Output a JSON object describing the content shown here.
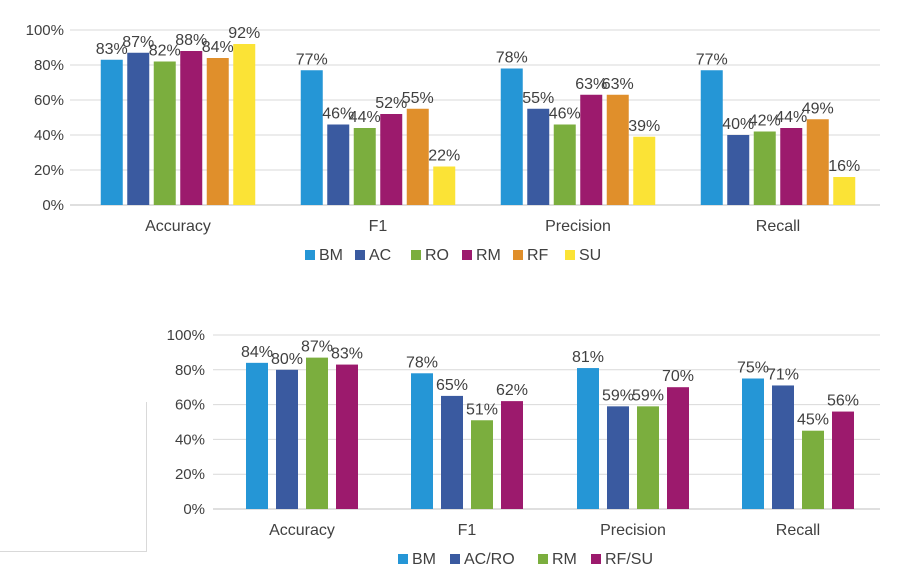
{
  "chart_data": [
    {
      "type": "bar",
      "categories": [
        "Accuracy",
        "F1",
        "Precision",
        "Recall"
      ],
      "ylim": [
        0,
        100
      ],
      "yticks": [
        "0%",
        "20%",
        "40%",
        "60%",
        "80%",
        "100%"
      ],
      "series": [
        {
          "name": "BM",
          "color": "#2596d6",
          "values": [
            83,
            77,
            78,
            77
          ],
          "labels": [
            "83%",
            "77%",
            "78%",
            "77%"
          ]
        },
        {
          "name": "AC",
          "color": "#3a5aa0",
          "values": [
            87,
            46,
            55,
            40
          ],
          "labels": [
            "87%",
            "46%",
            "55%",
            "40%"
          ]
        },
        {
          "name": "RO",
          "color": "#7bae3e",
          "values": [
            82,
            44,
            46,
            42
          ],
          "labels": [
            "82%",
            "44%",
            "46%",
            "42%"
          ]
        },
        {
          "name": "RM",
          "color": "#9c1a6d",
          "values": [
            88,
            52,
            63,
            44
          ],
          "labels": [
            "88%",
            "52%",
            "63%",
            "44%"
          ]
        },
        {
          "name": "RF",
          "color": "#e08f2b",
          "values": [
            84,
            55,
            63,
            49
          ],
          "labels": [
            "84%",
            "55%",
            "63%",
            "49%"
          ]
        },
        {
          "name": "SU",
          "color": "#fbe336",
          "values": [
            92,
            22,
            39,
            16
          ],
          "labels": [
            "92%",
            "22%",
            "39%",
            "16%"
          ]
        }
      ]
    },
    {
      "type": "bar",
      "categories": [
        "Accuracy",
        "F1",
        "Precision",
        "Recall"
      ],
      "ylim": [
        0,
        100
      ],
      "yticks": [
        "0%",
        "20%",
        "40%",
        "60%",
        "80%",
        "100%"
      ],
      "series": [
        {
          "name": "BM",
          "color": "#2596d6",
          "values": [
            84,
            78,
            81,
            75
          ],
          "labels": [
            "84%",
            "78%",
            "81%",
            "75%"
          ]
        },
        {
          "name": "AC/RO",
          "color": "#3a5aa0",
          "values": [
            80,
            65,
            59,
            71
          ],
          "labels": [
            "80%",
            "65%",
            "59%",
            "71%"
          ]
        },
        {
          "name": "RM",
          "color": "#7bae3e",
          "values": [
            87,
            51,
            59,
            45
          ],
          "labels": [
            "87%",
            "51%",
            "59%",
            "45%"
          ]
        },
        {
          "name": "RF/SU",
          "color": "#9c1a6d",
          "values": [
            83,
            62,
            70,
            56
          ],
          "labels": [
            "83%",
            "62%",
            "70%",
            "56%"
          ]
        }
      ]
    }
  ]
}
